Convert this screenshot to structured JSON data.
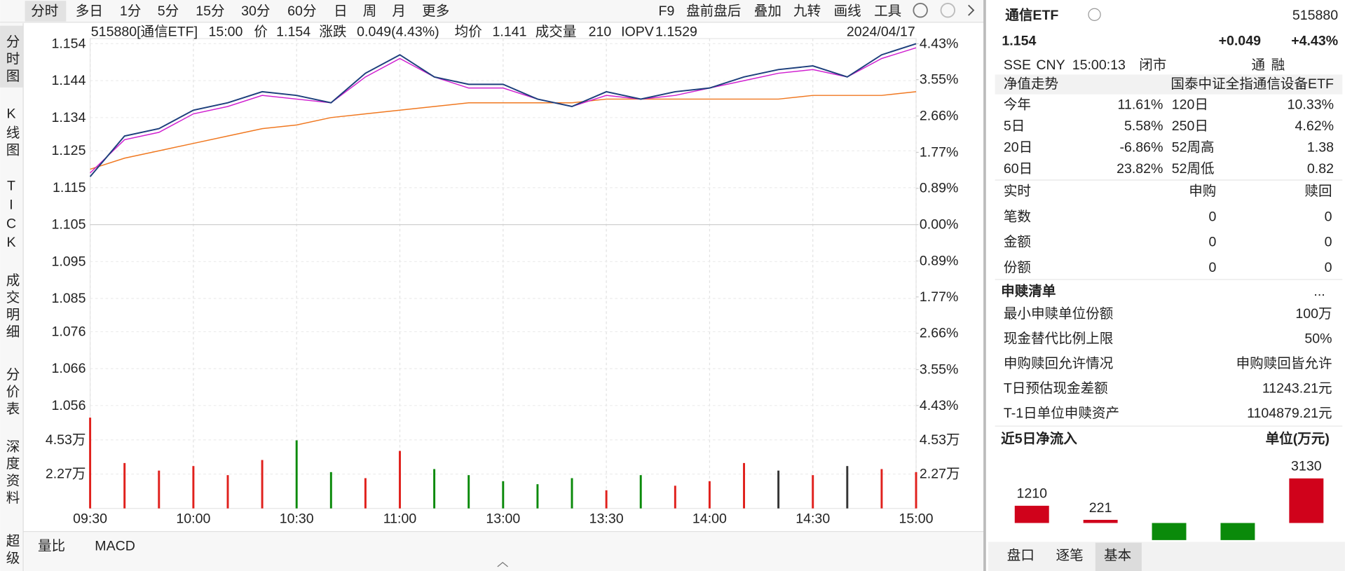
{
  "toolbar": {
    "periods": [
      "分时",
      "多日",
      "1分",
      "5分",
      "15分",
      "30分",
      "60分",
      "日",
      "周",
      "月",
      "更多"
    ],
    "tools": [
      "F9",
      "盘前盘后",
      "叠加",
      "九转",
      "画线",
      "工具"
    ]
  },
  "side_tabs": [
    "分时图",
    "K线图",
    "TICK",
    "成交明细",
    "分价表",
    "深度资料",
    "超级"
  ],
  "info_bar": {
    "code": "515880[通信ETF]",
    "time": "15:00",
    "change_label": "涨跌",
    "change": "0.049(4.43%)",
    "volume_label": "成交量",
    "volume": "210",
    "date": "2024/04/17"
  },
  "chart_data": {
    "type": "line",
    "categories": [
      "09:30",
      null,
      null,
      "10:00",
      null,
      null,
      "10:30",
      null,
      null,
      "11:00",
      null,
      null,
      "13:00",
      null,
      null,
      "13:30",
      null,
      null,
      "14:00",
      null,
      null,
      "14:30",
      null,
      null,
      "15:00"
    ],
    "series": [
      {
        "name": "价",
        "color": "#1d3f7c",
        "values": [
          1.118,
          1.129,
          1.131,
          1.136,
          1.138,
          1.141,
          1.14,
          1.138,
          1.146,
          1.151,
          1.145,
          1.143,
          1.143,
          1.139,
          1.137,
          1.141,
          1.139,
          1.141,
          1.142,
          1.145,
          1.147,
          1.148,
          1.145,
          1.151,
          1.154
        ]
      },
      {
        "name": "均价",
        "color": "#f07820",
        "values": [
          1.12,
          1.123,
          1.125,
          1.127,
          1.129,
          1.131,
          1.132,
          1.134,
          1.135,
          1.136,
          1.137,
          1.138,
          1.138,
          1.138,
          1.138,
          1.139,
          1.139,
          1.139,
          1.139,
          1.139,
          1.139,
          1.14,
          1.14,
          1.14,
          1.141
        ]
      },
      {
        "name": "IOPV",
        "color": "#d020d0",
        "values": [
          1.119,
          1.128,
          1.13,
          1.135,
          1.137,
          1.14,
          1.139,
          1.138,
          1.145,
          1.15,
          1.145,
          1.142,
          1.142,
          1.139,
          1.137,
          1.14,
          1.139,
          1.14,
          1.142,
          1.144,
          1.146,
          1.147,
          1.145,
          1.15,
          1.1529
        ]
      }
    ],
    "ylim": [
      1.056,
      1.154
    ],
    "yticks": [
      1.154,
      1.144,
      1.134,
      1.125,
      1.115,
      1.105,
      1.095,
      1.085,
      1.076,
      1.066,
      1.056
    ],
    "y2lim": [
      -4.43,
      4.43
    ],
    "y2ticks": [
      {
        "value": 4.43,
        "label": "4.43%"
      },
      {
        "value": 3.55,
        "label": "3.55%"
      },
      {
        "value": 2.66,
        "label": "2.66%"
      },
      {
        "value": 1.77,
        "label": "1.77%"
      },
      {
        "value": 0.89,
        "label": "0.89%"
      },
      {
        "value": 0,
        "label": "0.00%"
      },
      {
        "value": -0.89,
        "label": "0.89%"
      },
      {
        "value": -1.77,
        "label": "1.77%"
      },
      {
        "value": -2.66,
        "label": "2.66%"
      },
      {
        "value": -3.55,
        "label": "3.55%"
      },
      {
        "value": -4.43,
        "label": "4.43%"
      }
    ],
    "grid": true,
    "volume": {
      "values": [
        60000,
        30000,
        25000,
        28000,
        22000,
        32000,
        45000,
        24000,
        20000,
        38000,
        26000,
        22000,
        18000,
        16000,
        20000,
        12000,
        22000,
        15000,
        18000,
        30000,
        25000,
        22000,
        28000,
        26000,
        24000
      ],
      "colors": [
        "#e0201c",
        "#e0201c",
        "#e0201c",
        "#e0201c",
        "#e0201c",
        "#e0201c",
        "#0a8a0a",
        "#0a8a0a",
        "#e0201c",
        "#e0201c",
        "#0a8a0a",
        "#0a8a0a",
        "#0a8a0a",
        "#0a8a0a",
        "#0a8a0a",
        "#e0201c",
        "#0a8a0a",
        "#e0201c",
        "#e0201c",
        "#e0201c",
        "#333333",
        "#e0201c",
        "#333333",
        "#e0201c",
        "#e0201c"
      ],
      "ylim": [
        0,
        68000
      ],
      "yticks": [
        {
          "value": 45300,
          "label": "4.53万"
        },
        {
          "value": 22700,
          "label": "2.27万"
        }
      ]
    }
  },
  "bottom_tabs": [
    "量比",
    "MACD"
  ],
  "quote": {
    "name": "通信ETF",
    "code": "515880",
    "change": "+0.049",
    "change_pct": "+4.43%",
    "exchange": "SSE",
    "currency": "CNY",
    "time": "15:00:13",
    "status": "闭市",
    "tags": [
      "通",
      "融"
    ]
  },
  "nav": {
    "label": "净值走势",
    "index": "国泰中证全指通信设备ETF"
  },
  "stats": [
    [
      {
        "label": "今年",
        "value": "11.61%",
        "color": "#e0201c"
      },
      {
        "label": "120日",
        "value": "10.33%",
        "color": "#e0201c"
      }
    ],
    [
      {
        "label": "5日",
        "value": "5.58%",
        "color": "#e0201c"
      },
      {
        "label": "250日",
        "value": "4.62%",
        "color": "#e0201c"
      }
    ],
    [
      {
        "label": "20日",
        "value": "-6.86%",
        "color": "#0a8a0a"
      },
      {
        "label": "52周高",
        "value": "1.38",
        "color": "#222222"
      }
    ],
    [
      {
        "label": "60日",
        "value": "23.82%",
        "color": "#e0201c"
      },
      {
        "label": "52周低",
        "value": "0.82",
        "color": "#222222"
      }
    ]
  ],
  "realtime": {
    "header": [
      "实时",
      "申购",
      "赎回"
    ],
    "rows": [
      [
        "笔数",
        "0",
        "0"
      ],
      [
        "金额",
        "0",
        "0"
      ],
      [
        "份额",
        "0",
        "0"
      ]
    ]
  },
  "redemption": {
    "title": "申赎清单",
    "more": "...",
    "rows": [
      [
        "最小申赎单位份额",
        "100万"
      ],
      [
        "现金替代比例上限",
        "50%"
      ],
      [
        "申购赎回允许情况",
        "申购赎回皆允许"
      ],
      [
        "T日预估现金差额",
        "11243.21元"
      ],
      [
        "T-1日单位申赎资产",
        "1104879.21元"
      ]
    ]
  },
  "flow": {
    "title": "近5日净流入",
    "unit": "单位(万元)",
    "values": [
      1210,
      221,
      -1200,
      -1200,
      3130
    ],
    "value_labels": [
      "1210",
      "221",
      null,
      null,
      "3130"
    ],
    "colors": [
      "#d0021b",
      "#d0021b",
      "#0a8a0a",
      "#0a8a0a",
      "#d0021b"
    ]
  },
  "right_tabs": [
    "盘口",
    "逐笔",
    "基本"
  ]
}
